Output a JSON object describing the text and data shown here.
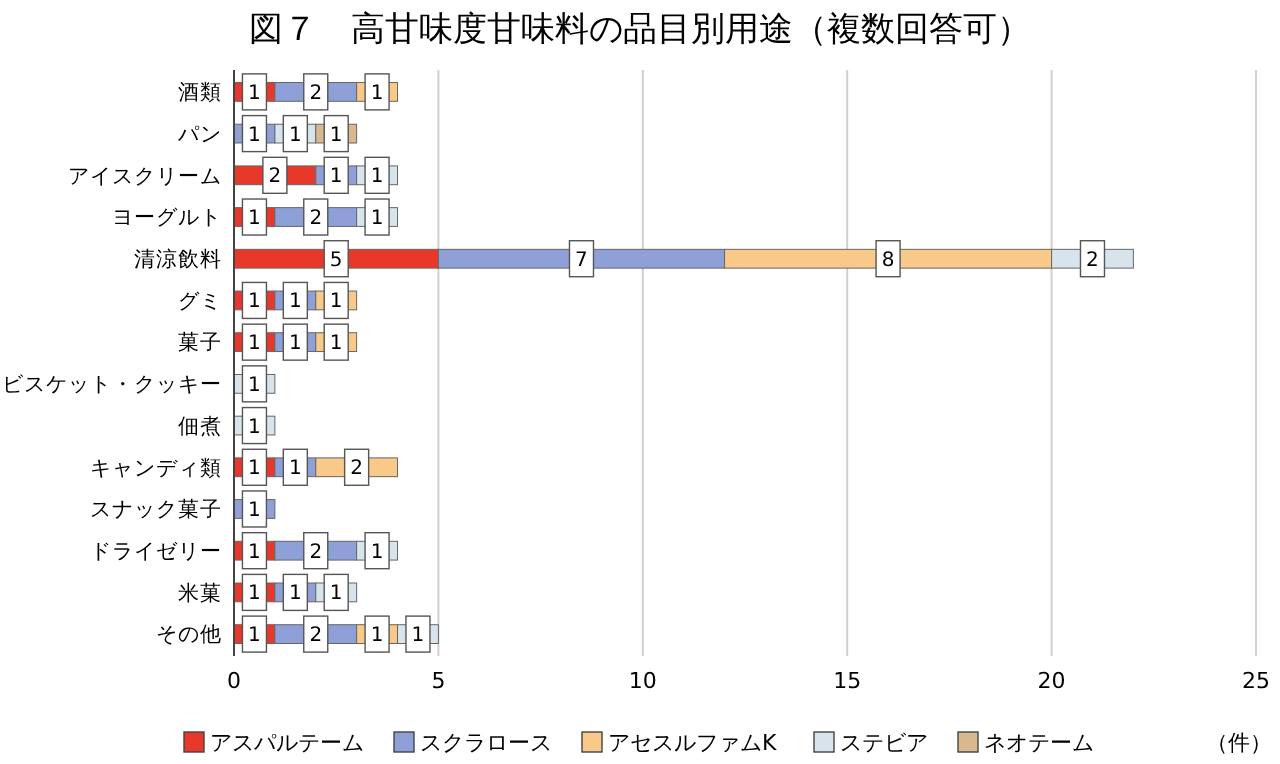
{
  "chart_data": {
    "type": "bar",
    "orientation": "horizontal",
    "stacked": true,
    "title": "図７　高甘味度甘味料の品目別用途（複数回答可）",
    "categories": [
      "酒類",
      "パン",
      "アイスクリーム",
      "ヨーグルト",
      "清涼飲料",
      "グミ",
      "菓子",
      "ビスケット・クッキー",
      "佃煮",
      "キャンディ類",
      "スナック菓子",
      "ドライゼリー",
      "米菓",
      "その他"
    ],
    "series": [
      {
        "name": "アスパルテーム",
        "color": "#e8382a",
        "values": [
          1,
          null,
          2,
          1,
          5,
          1,
          1,
          null,
          null,
          1,
          null,
          1,
          1,
          1
        ]
      },
      {
        "name": "スクラロース",
        "color": "#8fa0d8",
        "values": [
          2,
          1,
          1,
          2,
          7,
          1,
          1,
          null,
          null,
          1,
          1,
          2,
          1,
          2
        ]
      },
      {
        "name": "アセスルファムK",
        "color": "#f9c98a",
        "values": [
          1,
          null,
          null,
          null,
          8,
          1,
          1,
          null,
          null,
          2,
          null,
          null,
          null,
          1
        ]
      },
      {
        "name": "ステビア",
        "color": "#d8e4ec",
        "values": [
          null,
          1,
          1,
          1,
          2,
          null,
          null,
          1,
          1,
          null,
          null,
          1,
          1,
          1
        ]
      },
      {
        "name": "ネオテーム",
        "color": "#d9b890",
        "values": [
          null,
          1,
          null,
          null,
          null,
          null,
          null,
          null,
          null,
          null,
          null,
          null,
          null,
          null
        ]
      }
    ],
    "xlim": [
      0,
      25
    ],
    "xticks": [
      0,
      5,
      10,
      15,
      20,
      25
    ],
    "grid": "x",
    "legend": "bottom",
    "data_labels": true,
    "annotations": [
      "（件）"
    ]
  }
}
